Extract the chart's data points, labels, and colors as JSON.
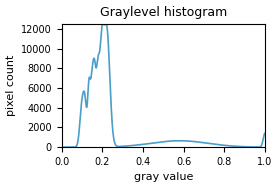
{
  "title": "Graylevel histogram",
  "xlabel": "gray value",
  "ylabel": "pixel count",
  "xlim": [
    0.0,
    1.0
  ],
  "ylim": [
    0,
    12500
  ],
  "yticks": [
    0,
    2000,
    4000,
    6000,
    8000,
    10000,
    12000
  ],
  "xticks": [
    0.0,
    0.2,
    0.4,
    0.6,
    0.8,
    1.0
  ],
  "line_color": "#4a9eca",
  "linewidth": 1.2,
  "figsize": [
    2.78,
    1.88
  ],
  "dpi": 100
}
